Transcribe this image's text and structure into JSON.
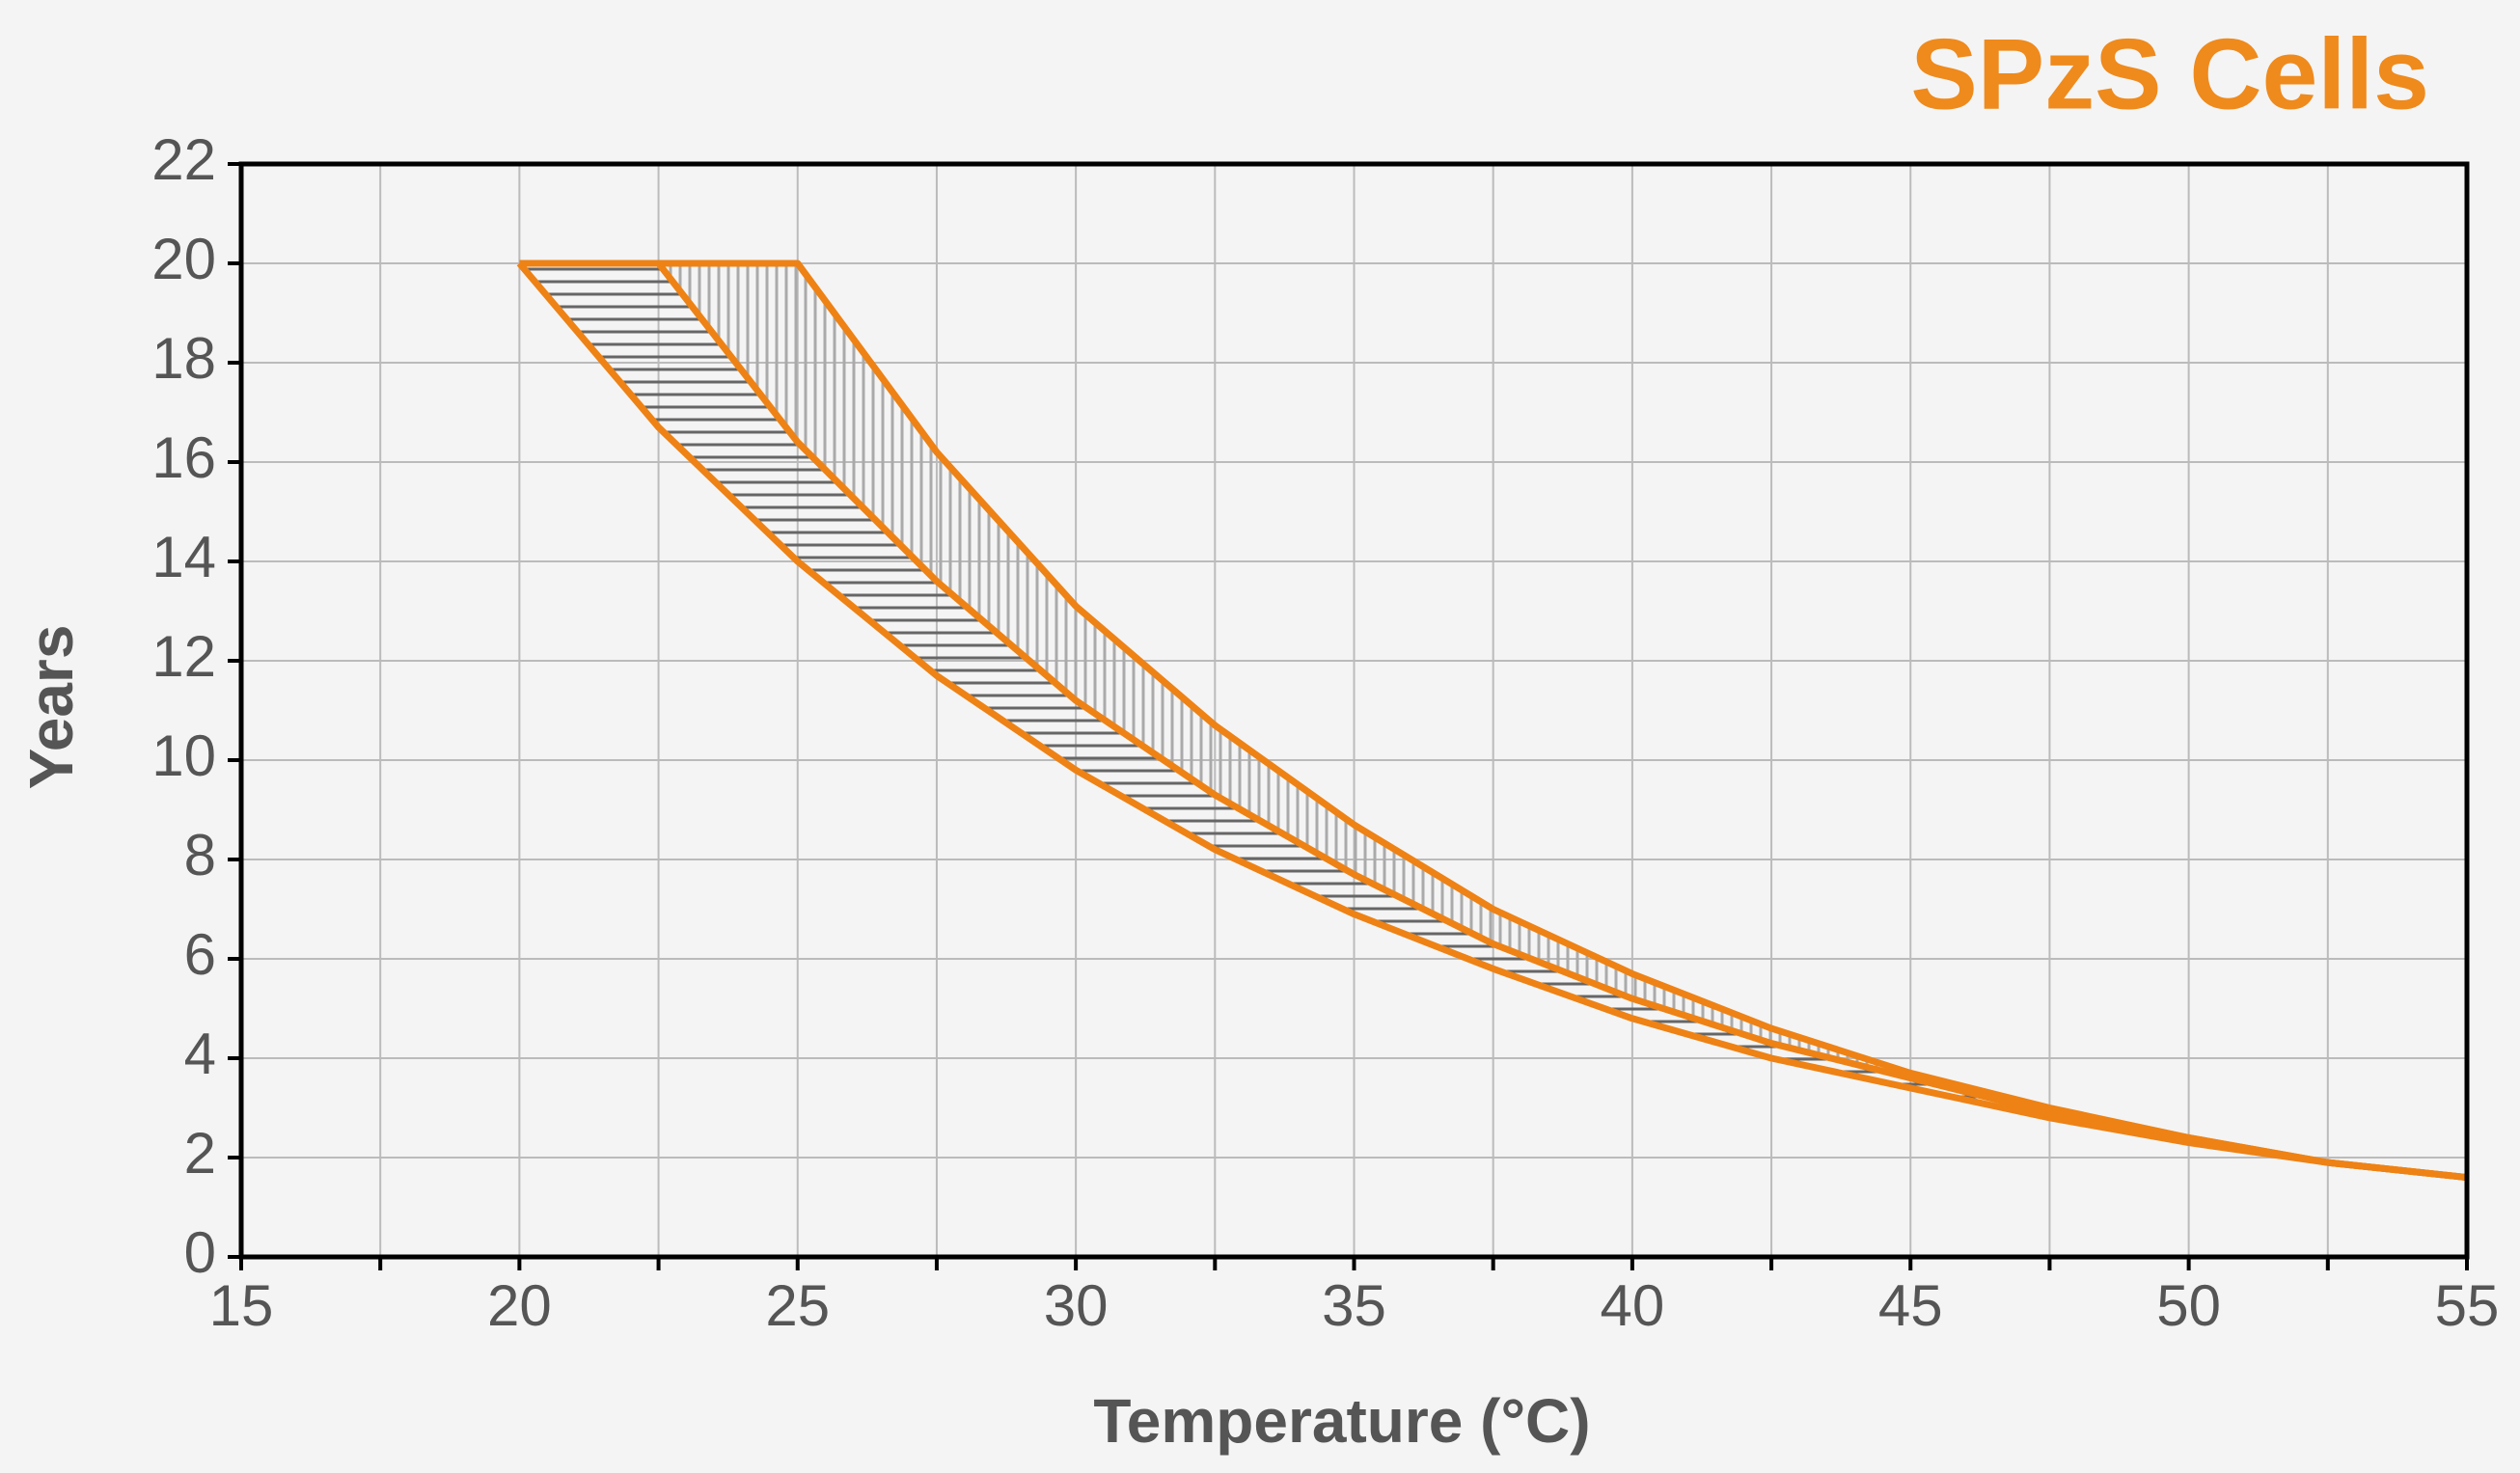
{
  "chart_data": {
    "type": "line",
    "title": "SPzS Cells",
    "xlabel": "Temperature (°C)",
    "ylabel": "Years",
    "x": [
      20,
      22.5,
      25,
      27.5,
      30,
      32.5,
      35,
      37.5,
      40,
      42.5,
      45,
      47.5,
      50,
      52.5,
      55
    ],
    "series": [
      {
        "color": "#ee8214",
        "values": [
          20,
          16.7,
          14,
          11.7,
          9.8,
          8.2,
          6.9,
          5.8,
          4.8,
          4.0,
          3.4,
          2.8,
          2.3,
          1.9,
          1.6
        ]
      },
      {
        "color": "#ee8214",
        "values": [
          null,
          20,
          16.4,
          13.6,
          11.2,
          9.3,
          7.7,
          6.3,
          5.2,
          4.3,
          3.6,
          2.9,
          2.4,
          1.9,
          1.6
        ]
      },
      {
        "color": "#ee8214",
        "values": [
          20,
          20,
          20,
          16.2,
          13.1,
          10.7,
          8.7,
          7.0,
          5.7,
          4.6,
          3.7,
          3.0,
          2.4,
          1.9,
          1.6
        ]
      }
    ],
    "xlim": [
      15,
      55
    ],
    "xticks": [
      15,
      20,
      25,
      30,
      35,
      40,
      45,
      50,
      55
    ],
    "ylim": [
      0,
      22
    ],
    "yticks": [
      0,
      2,
      4,
      6,
      8,
      10,
      12,
      14,
      16,
      18,
      20,
      22
    ],
    "grid": true,
    "minor_x_grid": true
  }
}
